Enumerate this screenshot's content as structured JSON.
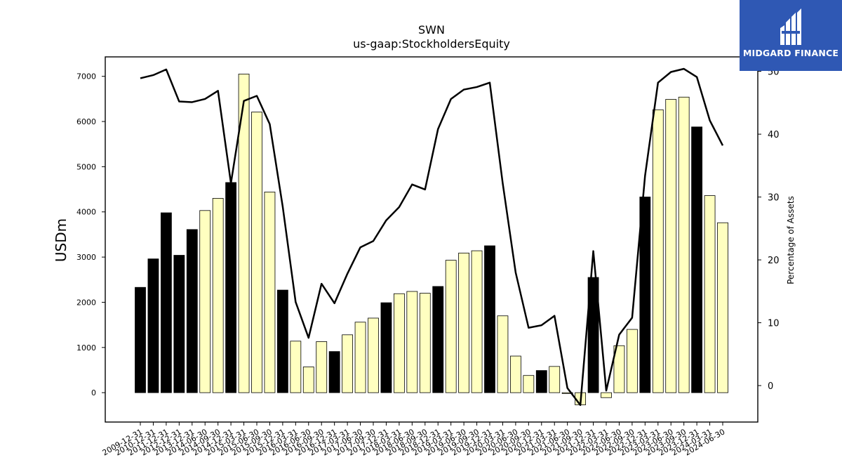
{
  "chart_data": {
    "type": "bar",
    "title": "SWN",
    "subtitle": "us-gaap:StockholdersEquity",
    "ylabel": "USDm",
    "y2label": "Percentage of Assets",
    "ylim": [
      -650,
      7430
    ],
    "y2lim": [
      -5.8,
      52.3
    ],
    "yticks": [
      0,
      1000,
      2000,
      3000,
      4000,
      5000,
      6000,
      7000
    ],
    "y2ticks": [
      0,
      10,
      20,
      30,
      40,
      50
    ],
    "categories": [
      "2009-12-31",
      "2010-12-31",
      "2011-12-31",
      "2012-12-31",
      "2013-12-31",
      "2014-06-30",
      "2014-09-30",
      "2014-12-31",
      "2015-03-31",
      "2015-06-30",
      "2015-09-30",
      "2015-12-31",
      "2016-03-31",
      "2016-06-30",
      "2016-09-30",
      "2016-12-31",
      "2017-03-31",
      "2017-06-30",
      "2017-09-30",
      "2017-12-31",
      "2018-03-31",
      "2018-06-30",
      "2018-09-30",
      "2018-12-31",
      "2019-03-31",
      "2019-06-30",
      "2019-09-30",
      "2019-12-31",
      "2020-03-31",
      "2020-06-30",
      "2020-09-30",
      "2020-12-31",
      "2021-03-31",
      "2021-06-30",
      "2021-09-30",
      "2021-12-31",
      "2022-03-31",
      "2022-06-30",
      "2022-09-30",
      "2022-12-31",
      "2023-03-31",
      "2023-06-30",
      "2023-09-30",
      "2023-12-31",
      "2024-03-31",
      "2024-06-30"
    ],
    "series": [
      {
        "name": "",
        "kind": "bar",
        "values": [
          2330,
          2960,
          3980,
          3040,
          3610,
          4030,
          4300,
          4650,
          7050,
          6210,
          4440,
          2270,
          1140,
          570,
          1130,
          910,
          1280,
          1560,
          1650,
          1990,
          2190,
          2240,
          2200,
          2350,
          2930,
          3090,
          3140,
          3250,
          1700,
          810,
          380,
          490,
          580,
          -20,
          -270,
          2550,
          -110,
          1040,
          1400,
          4330,
          6260,
          6490,
          6540,
          5880,
          4360,
          3760
        ],
        "highlight": [
          1,
          1,
          1,
          1,
          1,
          0,
          0,
          1,
          0,
          0,
          0,
          1,
          0,
          0,
          0,
          1,
          0,
          0,
          0,
          1,
          0,
          0,
          0,
          1,
          0,
          0,
          0,
          1,
          0,
          0,
          0,
          1,
          0,
          0,
          0,
          1,
          0,
          0,
          0,
          1,
          0,
          0,
          0,
          1,
          0,
          0
        ]
      },
      {
        "name": "",
        "kind": "line",
        "axis": "right",
        "values": [
          48.9,
          49.4,
          50.3,
          45.2,
          45.1,
          45.6,
          46.9,
          32.2,
          45.3,
          46.1,
          41.6,
          28.5,
          13.3,
          7.6,
          16.2,
          13.1,
          17.8,
          22.0,
          23.0,
          26.3,
          28.4,
          32.0,
          31.2,
          40.8,
          45.6,
          47.1,
          47.5,
          48.2,
          32.2,
          18.0,
          9.2,
          9.6,
          11.1,
          -0.4,
          -3.1,
          21.4,
          -0.8,
          8.1,
          10.8,
          33.4,
          48.2,
          49.9,
          50.4,
          49.1,
          42.2,
          38.2
        ]
      }
    ],
    "colors": {
      "highlight_bar": "#000000",
      "normal_bar": "#ffffc0",
      "bar_edge": "#000000",
      "line": "#000000"
    }
  },
  "logo": {
    "text": "MIDGARD FINANCE",
    "background": "#2f58b4"
  }
}
